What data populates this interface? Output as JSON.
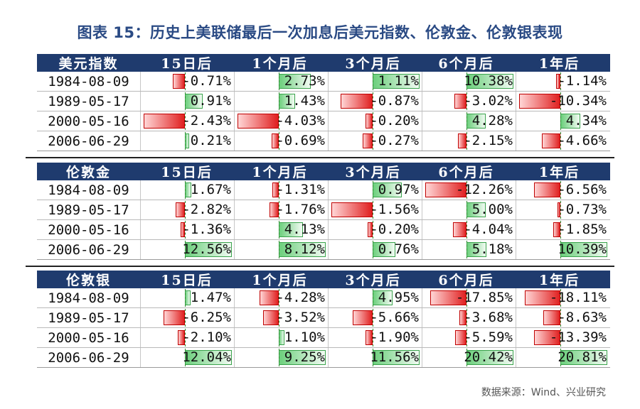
{
  "title": "图表 15：历史上美联储最后一次加息后美元指数、伦敦金、伦敦银表现",
  "source": "数据来源：Wind、兴业研究",
  "chart_data": {
    "type": "table",
    "columns": [
      "15日后",
      "1个月后",
      "3个月后",
      "6个月后",
      "1年后"
    ],
    "unit": "%",
    "tables": [
      {
        "name": "美元指数",
        "rows": [
          {
            "date": "1984-08-09",
            "values": [
              -0.71,
              2.73,
              1.11,
              10.38,
              -1.14
            ]
          },
          {
            "date": "1989-05-17",
            "values": [
              0.91,
              1.43,
              -0.87,
              -3.02,
              -10.34
            ]
          },
          {
            "date": "2000-05-16",
            "values": [
              -2.43,
              -4.03,
              -0.2,
              4.28,
              4.34
            ]
          },
          {
            "date": "2006-06-29",
            "values": [
              0.21,
              -0.69,
              -0.27,
              -2.15,
              -4.66
            ]
          }
        ]
      },
      {
        "name": "伦敦金",
        "rows": [
          {
            "date": "1984-08-09",
            "values": [
              1.67,
              -1.31,
              0.97,
              -12.26,
              -6.56
            ]
          },
          {
            "date": "1989-05-17",
            "values": [
              -2.82,
              -1.76,
              -1.56,
              5.0,
              -0.73
            ]
          },
          {
            "date": "2000-05-16",
            "values": [
              -1.36,
              4.13,
              -0.2,
              -4.04,
              -1.85
            ]
          },
          {
            "date": "2006-06-29",
            "values": [
              12.56,
              8.12,
              0.76,
              5.18,
              10.39
            ]
          }
        ]
      },
      {
        "name": "伦敦银",
        "rows": [
          {
            "date": "1984-08-09",
            "values": [
              1.47,
              -4.28,
              4.95,
              -17.85,
              -18.11
            ]
          },
          {
            "date": "1989-05-17",
            "values": [
              -6.25,
              -3.52,
              -5.66,
              -3.68,
              -8.63
            ]
          },
          {
            "date": "2000-05-16",
            "values": [
              -2.1,
              1.1,
              -1.9,
              -5.59,
              -13.39
            ]
          },
          {
            "date": "2006-06-29",
            "values": [
              12.04,
              9.25,
              11.56,
              20.42,
              20.81
            ]
          }
        ]
      }
    ]
  }
}
